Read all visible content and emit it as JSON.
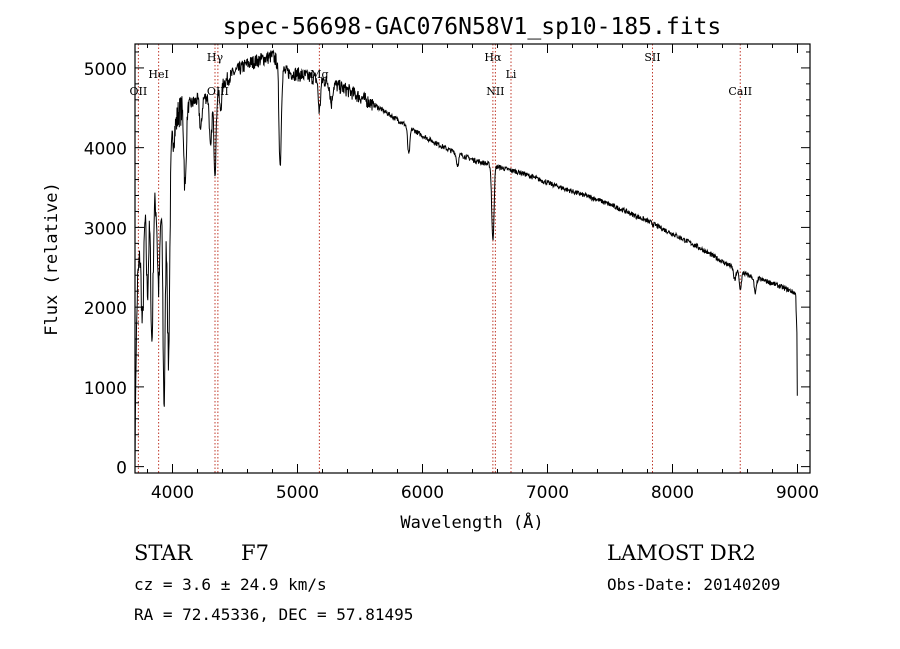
{
  "chart_data": {
    "type": "line",
    "title": "spec-56698-GAC076N58V1_sp10-185.fits",
    "xlabel": "Wavelength (Å)",
    "ylabel": "Flux (relative)",
    "xlim": [
      3700,
      9100
    ],
    "ylim": [
      -80,
      5300
    ],
    "xticks": [
      4000,
      5000,
      6000,
      7000,
      8000,
      9000
    ],
    "yticks": [
      0,
      1000,
      2000,
      3000,
      4000,
      5000
    ],
    "grid": false,
    "line_color": "#000000",
    "marker_color": "#c0392b",
    "spectral_lines": [
      {
        "label": "OII",
        "wavelength": 3727,
        "label_row": "low"
      },
      {
        "label": "HeI",
        "wavelength": 3889,
        "label_row": "mid"
      },
      {
        "label": "Hγ",
        "wavelength": 4340,
        "label_row": "high"
      },
      {
        "label": "OIII",
        "wavelength": 4363,
        "label_row": "low"
      },
      {
        "label": "Mg",
        "wavelength": 5175,
        "label_row": "mid"
      },
      {
        "label": "Hα",
        "wavelength": 6563,
        "label_row": "high"
      },
      {
        "label": "NII",
        "wavelength": 6583,
        "label_row": "low"
      },
      {
        "label": "Li",
        "wavelength": 6708,
        "label_row": "mid"
      },
      {
        "label": "SII",
        "wavelength": 7840,
        "label_row": "high"
      },
      {
        "label": "CaII",
        "wavelength": 8542,
        "label_row": "low"
      }
    ],
    "continuum": [
      [
        3700,
        0
      ],
      [
        3705,
        1100
      ],
      [
        3720,
        2300
      ],
      [
        3760,
        3100
      ],
      [
        3800,
        3400
      ],
      [
        3850,
        3350
      ],
      [
        3900,
        3200
      ],
      [
        3950,
        3500
      ],
      [
        4000,
        4100
      ],
      [
        4050,
        4450
      ],
      [
        4100,
        4500
      ],
      [
        4200,
        4600
      ],
      [
        4300,
        4650
      ],
      [
        4400,
        4800
      ],
      [
        4500,
        4950
      ],
      [
        4600,
        5050
      ],
      [
        4700,
        5100
      ],
      [
        4800,
        5150
      ],
      [
        4900,
        4950
      ],
      [
        5000,
        4920
      ],
      [
        5200,
        4850
      ],
      [
        5400,
        4720
      ],
      [
        5600,
        4550
      ],
      [
        5800,
        4350
      ],
      [
        6000,
        4150
      ],
      [
        6200,
        3980
      ],
      [
        6400,
        3850
      ],
      [
        6600,
        3760
      ],
      [
        6800,
        3680
      ],
      [
        7000,
        3560
      ],
      [
        7200,
        3450
      ],
      [
        7400,
        3350
      ],
      [
        7600,
        3220
      ],
      [
        7800,
        3080
      ],
      [
        8000,
        2920
      ],
      [
        8200,
        2760
      ],
      [
        8400,
        2570
      ],
      [
        8600,
        2400
      ],
      [
        8800,
        2300
      ],
      [
        8950,
        2200
      ],
      [
        8985,
        2170
      ],
      [
        8995,
        1700
      ],
      [
        9000,
        350
      ]
    ],
    "absorption_features": [
      [
        3760,
        1300
      ],
      [
        3800,
        1200
      ],
      [
        3835,
        1800
      ],
      [
        3889,
        1000
      ],
      [
        3933,
        2600
      ],
      [
        3968,
        2400
      ],
      [
        4101,
        1000
      ],
      [
        4226,
        400
      ],
      [
        4305,
        700
      ],
      [
        4340,
        1000
      ],
      [
        4384,
        300
      ],
      [
        4861,
        1250
      ],
      [
        5175,
        400
      ],
      [
        5270,
        250
      ],
      [
        5890,
        350
      ],
      [
        6280,
        150
      ],
      [
        6563,
        950
      ],
      [
        8498,
        150
      ],
      [
        8542,
        220
      ],
      [
        8662,
        200
      ]
    ],
    "absorption_width_A": 9,
    "noise_amplitude": 180
  },
  "info": {
    "object_class": "STAR",
    "subclass": "F7",
    "survey": "LAMOST DR2",
    "redshift_text": "cz = 3.6 ± 24.9 km/s",
    "obs_date_text": "Obs-Date: 20140209",
    "coords_text": "RA =  72.45336, DEC =  57.81495"
  }
}
